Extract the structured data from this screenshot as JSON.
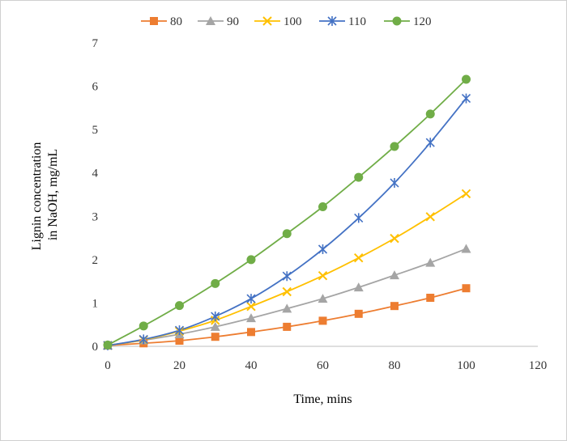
{
  "chart_data": {
    "type": "line",
    "title": "",
    "xlabel": "Time, mins",
    "ylabel_lines": [
      "Lignin concentration",
      "in NaOH, mg/mL"
    ],
    "xlim": [
      0,
      120
    ],
    "ylim": [
      0,
      7
    ],
    "x_ticks": [
      0,
      20,
      40,
      60,
      80,
      100,
      120
    ],
    "y_ticks": [
      0,
      1,
      2,
      3,
      4,
      5,
      6,
      7
    ],
    "grid": false,
    "legend_position": "top",
    "x": [
      0,
      10,
      20,
      30,
      40,
      50,
      60,
      70,
      80,
      90,
      100
    ],
    "series": [
      {
        "name": "80",
        "color": "#ED7D31",
        "marker": "square",
        "values": [
          0.02,
          0.07,
          0.13,
          0.22,
          0.33,
          0.45,
          0.59,
          0.75,
          0.93,
          1.12,
          1.34
        ]
      },
      {
        "name": "90",
        "color": "#A5A5A5",
        "marker": "triangle",
        "values": [
          0.02,
          0.14,
          0.28,
          0.45,
          0.65,
          0.87,
          1.1,
          1.36,
          1.64,
          1.93,
          2.25
        ]
      },
      {
        "name": "100",
        "color": "#FFC000",
        "marker": "x",
        "values": [
          0.02,
          0.15,
          0.35,
          0.6,
          0.92,
          1.26,
          1.63,
          2.04,
          2.49,
          2.99,
          3.52
        ]
      },
      {
        "name": "110",
        "color": "#4472C4",
        "marker": "star",
        "values": [
          0.02,
          0.16,
          0.37,
          0.69,
          1.1,
          1.62,
          2.24,
          2.96,
          3.77,
          4.7,
          5.72
        ]
      },
      {
        "name": "120",
        "color": "#70AD47",
        "marker": "circle",
        "values": [
          0.03,
          0.47,
          0.94,
          1.45,
          2.0,
          2.6,
          3.22,
          3.9,
          4.61,
          5.36,
          6.16
        ]
      }
    ]
  }
}
